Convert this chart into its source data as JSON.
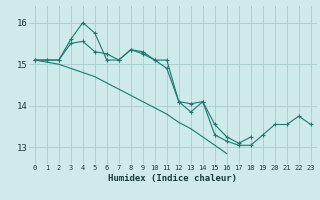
{
  "xlabel": "Humidex (Indice chaleur)",
  "background_color": "#ceeaea",
  "grid_color": "#aed0d0",
  "line_color": "#1a7a6e",
  "xlim": [
    -0.5,
    23.5
  ],
  "ylim": [
    12.6,
    16.4
  ],
  "yticks": [
    13,
    14,
    15,
    16
  ],
  "xticks": [
    0,
    1,
    2,
    3,
    4,
    5,
    6,
    7,
    8,
    9,
    10,
    11,
    12,
    13,
    14,
    15,
    16,
    17,
    18,
    19,
    20,
    21,
    22,
    23
  ],
  "series1_x": [
    0,
    1,
    2,
    3,
    4,
    5,
    6,
    7,
    8,
    9,
    10,
    11,
    12,
    13,
    14,
    15,
    16,
    17,
    18,
    19,
    20,
    21,
    22,
    23
  ],
  "series1_y": [
    15.1,
    15.1,
    15.1,
    15.6,
    16.0,
    15.75,
    15.1,
    15.1,
    15.35,
    15.25,
    15.1,
    14.9,
    14.1,
    13.85,
    14.1,
    13.3,
    13.15,
    13.05,
    13.05,
    13.3,
    13.55,
    13.55,
    13.75,
    13.55
  ],
  "series2_x": [
    0,
    1,
    2,
    3,
    4,
    5,
    6,
    7,
    8,
    9,
    10,
    11,
    12,
    13,
    14,
    15,
    16,
    17,
    18
  ],
  "series2_y": [
    15.1,
    15.1,
    15.1,
    15.5,
    15.55,
    15.3,
    15.25,
    15.1,
    15.35,
    15.3,
    15.1,
    15.1,
    14.1,
    14.05,
    14.1,
    13.55,
    13.25,
    13.1,
    13.25
  ],
  "series3_x": [
    0,
    1,
    2,
    3,
    4,
    5,
    6,
    7,
    8,
    9,
    10,
    11,
    12,
    13,
    14,
    15,
    16
  ],
  "series3_y": [
    15.1,
    15.05,
    15.0,
    14.9,
    14.8,
    14.7,
    14.55,
    14.4,
    14.25,
    14.1,
    13.95,
    13.8,
    13.6,
    13.45,
    13.25,
    13.05,
    12.85
  ]
}
